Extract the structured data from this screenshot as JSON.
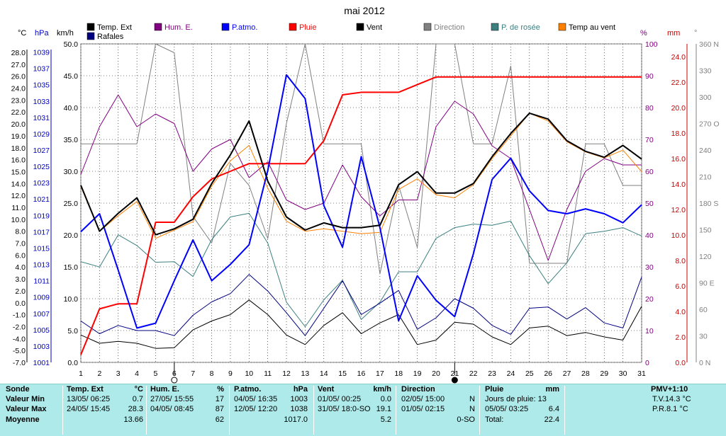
{
  "chart_data": {
    "type": "line",
    "title": "mai 2012",
    "x": [
      1,
      2,
      3,
      4,
      5,
      6,
      7,
      8,
      9,
      10,
      11,
      12,
      13,
      14,
      15,
      16,
      17,
      18,
      19,
      20,
      21,
      22,
      23,
      24,
      25,
      26,
      27,
      28,
      29,
      30,
      31
    ],
    "axes": {
      "celsius": {
        "unit": "°C",
        "color": "#000000",
        "ticks": [
          "28.0",
          "27.0",
          "26.0",
          "24.0",
          "23.0",
          "22.0",
          "20.0",
          "19.0",
          "18.0",
          "16.0",
          "15.0",
          "14.0",
          "12.0",
          "11.0",
          "10.0",
          "8.0",
          "7.0",
          "6.0",
          "4.0",
          "3.0",
          "2.0",
          "0.0",
          "-1.0",
          "-2.0",
          "-4.0",
          "-5.0",
          "-7.0"
        ]
      },
      "hpa": {
        "unit": "hPa",
        "color": "#0000c8",
        "ticks": [
          "1039",
          "1037",
          "1035",
          "1033",
          "1031",
          "1029",
          "1027",
          "1025",
          "1023",
          "1021",
          "1019",
          "1017",
          "1015",
          "1013",
          "1011",
          "1009",
          "1007",
          "1005",
          "1003",
          "1001"
        ],
        "range": [
          1001,
          1040
        ]
      },
      "kmh": {
        "unit": "km/h",
        "color": "#000000",
        "ticks": [
          "50.0",
          "45.0",
          "40.0",
          "35.0",
          "30.0",
          "25.0",
          "20.0",
          "15.0",
          "10.0",
          "5.0",
          "0.0"
        ],
        "range": [
          0,
          50
        ]
      },
      "percent": {
        "unit": "%",
        "color": "#800080",
        "ticks": [
          "100",
          "90",
          "80",
          "70",
          "60",
          "50",
          "40",
          "30",
          "20",
          "10",
          "0"
        ],
        "range": [
          0,
          100
        ]
      },
      "mm": {
        "unit": "mm",
        "color": "#c80000",
        "ticks": [
          "24.0",
          "22.0",
          "20.0",
          "18.0",
          "16.0",
          "14.0",
          "12.0",
          "10.0",
          "8.0",
          "6.0",
          "4.0",
          "2.0",
          "0.0"
        ],
        "range": [
          0,
          25
        ]
      },
      "degrees": {
        "unit": "°",
        "color": "#808080",
        "ticks": [
          "360 N",
          "330",
          "300",
          "270 O",
          "240",
          "210",
          "180 S",
          "150",
          "120",
          "90 E",
          "60",
          "30",
          "0 N"
        ],
        "range": [
          0,
          360
        ]
      }
    },
    "legend": [
      {
        "name": "Temp. Ext",
        "color": "#000000"
      },
      {
        "name": "Hum. E.",
        "color": "#800080"
      },
      {
        "name": "P.atmo.",
        "color": "#0000ff"
      },
      {
        "name": "Pluie",
        "color": "#ff0000"
      },
      {
        "name": "Vent",
        "color": "#000000"
      },
      {
        "name": "Direction",
        "color": "#808080"
      },
      {
        "name": "P. de rosée",
        "color": "#3c8080"
      },
      {
        "name": "Temp au vent",
        "color": "#ff8000"
      },
      {
        "name": "Rafales",
        "color": "#000080"
      }
    ],
    "series": [
      {
        "name": "Temp. Ext",
        "axis": "celsius",
        "color": "#000000",
        "width": 2,
        "values": [
          13.7,
          8.0,
          10.5,
          11.8,
          7.7,
          8.4,
          10.0,
          14.0,
          16.8,
          20.5,
          14.2,
          10.2,
          8.2,
          9.4,
          8.6,
          8.6,
          9.0,
          13.8,
          15.0,
          12.4,
          12.4,
          14.0,
          16.5,
          19.2,
          21.8,
          20.8,
          18.6,
          17.4,
          16.4,
          18.2,
          16.1
        ]
      },
      {
        "name": "Temp au vent",
        "axis": "celsius",
        "color": "#ff8000",
        "width": 1,
        "values": [
          13.5,
          8.0,
          10.3,
          11.5,
          7.4,
          8.2,
          9.6,
          13.6,
          15.9,
          18.2,
          13.2,
          9.7,
          8.0,
          8.4,
          8.0,
          7.8,
          7.9,
          13.0,
          14.4,
          12.1,
          11.8,
          13.8,
          16.2,
          19.0,
          21.8,
          20.5,
          18.5,
          17.3,
          16.3,
          17.6,
          15.0
        ]
      },
      {
        "name": "Hum. E.",
        "axis": "percent",
        "color": "#800080",
        "width": 1,
        "values": [
          59,
          74,
          84,
          74,
          78,
          75,
          60,
          67,
          70,
          58,
          63,
          51,
          48,
          50,
          62,
          52,
          46,
          51,
          51,
          74,
          82,
          78,
          68,
          64,
          48,
          32,
          48,
          60,
          64,
          62,
          62
        ]
      },
      {
        "name": "P.atmo.",
        "axis": "hpa",
        "color": "#0000ff",
        "width": 2,
        "values": [
          1017.0,
          1019.2,
          1012.3,
          1005.2,
          1005.8,
          1011.0,
          1016.0,
          1011.0,
          1013.0,
          1015.4,
          1024.5,
          1036.2,
          1033.3,
          1020.2,
          1015.1,
          1026.2,
          1017.5,
          1006.1,
          1011.6,
          1008.6,
          1006.6,
          1014.3,
          1023.4,
          1026.0,
          1022.0,
          1019.6,
          1019.2,
          1019.8,
          1019.2,
          1018.1,
          1020.3
        ]
      },
      {
        "name": "Pluie",
        "axis": "mm",
        "color": "#ff0000",
        "width": 2,
        "values": [
          0.6,
          4.2,
          4.6,
          4.6,
          11.0,
          11.0,
          13.0,
          14.4,
          15.0,
          15.6,
          15.6,
          15.6,
          15.6,
          17.4,
          21.0,
          21.2,
          21.2,
          21.2,
          21.8,
          22.4,
          22.4,
          22.4,
          22.4,
          22.4,
          22.4,
          22.4,
          22.4,
          22.4,
          22.4,
          22.4,
          22.4
        ]
      },
      {
        "name": "P. de rosée",
        "axis": "celsius",
        "color": "#3c8080",
        "width": 1,
        "values": [
          4.9,
          4.0,
          7.7,
          6.8,
          4.8,
          4.9,
          3.2,
          7.3,
          10.2,
          10.5,
          7.0,
          0.1,
          -2.0,
          0.5,
          2.9,
          -1.4,
          0.1,
          3.6,
          3.6,
          7.4,
          8.6,
          9.2,
          9.0,
          9.7,
          5.9,
          2.6,
          4.7,
          7.8,
          8.0,
          8.6,
          7.6
        ]
      },
      {
        "name": "Vent",
        "axis": "kmh",
        "color": "#000000",
        "width": 1,
        "values": [
          4.3,
          3.0,
          3.3,
          3.0,
          2.2,
          2.3,
          5.1,
          6.5,
          7.5,
          9.8,
          7.5,
          4.3,
          2.8,
          5.8,
          7.8,
          4.5,
          6.2,
          7.5,
          2.8,
          3.5,
          6.3,
          6.0,
          4.0,
          2.8,
          5.4,
          5.7,
          4.2,
          4.7,
          4.0,
          3.5,
          8.8
        ]
      },
      {
        "name": "Rafales",
        "axis": "kmh",
        "color": "#000080",
        "width": 1,
        "values": [
          6.5,
          4.5,
          5.8,
          5.0,
          5.0,
          4.2,
          7.4,
          9.5,
          10.8,
          13.8,
          11.2,
          7.8,
          4.2,
          8.5,
          12.8,
          7.5,
          9.3,
          11.3,
          5.2,
          7.0,
          10.0,
          8.5,
          5.8,
          4.4,
          8.5,
          8.7,
          6.8,
          8.6,
          6.2,
          5.4,
          13.4
        ]
      },
      {
        "name": "Direction",
        "axis": "degrees",
        "color": "#808080",
        "width": 1,
        "values": [
          247,
          247,
          247,
          247,
          360,
          350,
          165,
          135,
          225,
          200,
          140,
          270,
          360,
          247,
          247,
          247,
          100,
          200,
          130,
          360,
          360,
          247,
          247,
          335,
          112,
          112,
          112,
          247,
          247,
          200,
          200
        ]
      }
    ],
    "moon_phases": [
      {
        "day": 6,
        "phase": "full"
      },
      {
        "day": 21,
        "phase": "new"
      }
    ]
  },
  "summary": {
    "sonde": {
      "label": "Sonde",
      "row_labels": [
        "Valeur Min",
        "Valeur Max",
        "Moyenne"
      ]
    },
    "temp": {
      "label": "Temp. Ext",
      "unit": "°C",
      "min_date": "13/05/ 06:25",
      "min_val": "0.7",
      "max_date": "24/05/ 15:45",
      "max_val": "28.3",
      "avg": "13.66"
    },
    "hum": {
      "label": "Hum. E.",
      "unit": "%",
      "min_date": "27/05/ 15:55",
      "min_val": "17",
      "max_date": "04/05/ 08:45",
      "max_val": "87",
      "avg": "62"
    },
    "patmo": {
      "label": "P.atmo.",
      "unit": "hPa",
      "min_date": "04/05/ 16:35",
      "min_val": "1003",
      "max_date": "12/05/ 12:20",
      "max_val": "1038",
      "avg": "1017.0"
    },
    "vent": {
      "label": "Vent",
      "unit": "km/h",
      "min_date": "01/05/ 00:25",
      "min_val": "0.0",
      "max_date": "31/05/ 18:0-SO",
      "max_val": "19.1",
      "avg": "5.2"
    },
    "direction": {
      "label": "Direction",
      "min_date": "02/05/ 15:00",
      "min_val": "N",
      "max_date": "01/05/ 02:15",
      "max_val": "N",
      "avg": "0-SO"
    },
    "pluie": {
      "label": "Pluie",
      "unit": "mm",
      "days_label": "Jours de pluie: 13",
      "max_date": "05/05/ 03:25",
      "max_val": "6.4",
      "total_label": "Total:",
      "total_val": "22.4"
    },
    "pmv": {
      "label": "PMV+1:10",
      "tv": "T.V.14.3 °C",
      "pr": "P.R.8.1 °C"
    }
  }
}
